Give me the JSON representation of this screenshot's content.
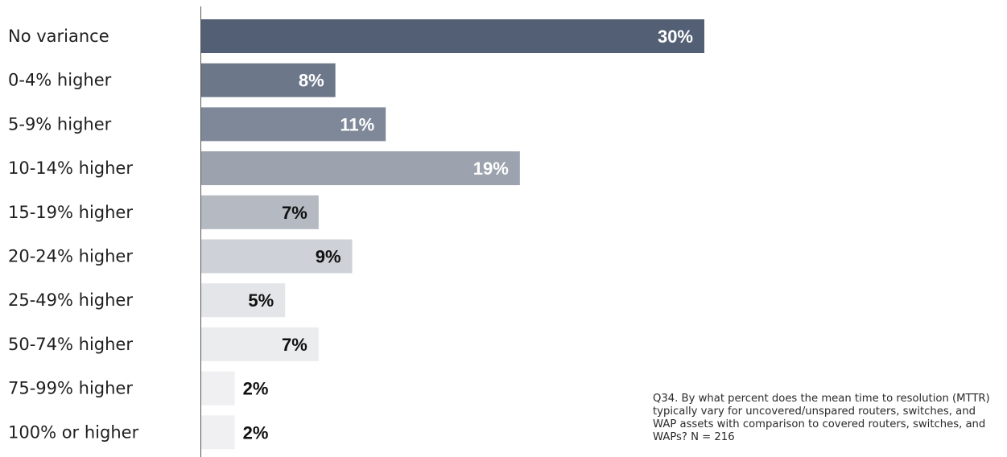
{
  "note": "Q34. By what percent does the mean time to resolution (MTTR) typically vary for uncovered/unspared routers, switches, and WAP assets with comparison to covered routers, switches, and WAPs? N = 216",
  "chart_data": {
    "type": "bar",
    "orientation": "horizontal",
    "title": "",
    "xlabel": "",
    "ylabel": "",
    "categories": [
      "No variance",
      "0-4% higher",
      "5-9% higher",
      "10-14% higher",
      "15-19% higher",
      "20-24% higher",
      "25-49% higher",
      "50-74% higher",
      "75-99% higher",
      "100% or higher"
    ],
    "values": [
      30,
      8,
      11,
      19,
      7,
      9,
      5,
      7,
      2,
      2
    ],
    "value_labels": [
      "30%",
      "8%",
      "11%",
      "19%",
      "7%",
      "9%",
      "5%",
      "7%",
      "2%",
      "2%"
    ],
    "unit": "%",
    "xlim": [
      0,
      30
    ],
    "grid": false,
    "legend": "none",
    "colors": [
      "#535f74",
      "#6c7789",
      "#7e8898",
      "#9ca3af",
      "#b4b9c2",
      "#ced1d7",
      "#e4e5e8",
      "#ebecee",
      "#f0f0f2",
      "#f0f0f2"
    ],
    "label_colors": [
      "#ffffff",
      "#ffffff",
      "#ffffff",
      "#ffffff",
      "#111111",
      "#111111",
      "#111111",
      "#111111",
      "#111111",
      "#111111"
    ]
  }
}
